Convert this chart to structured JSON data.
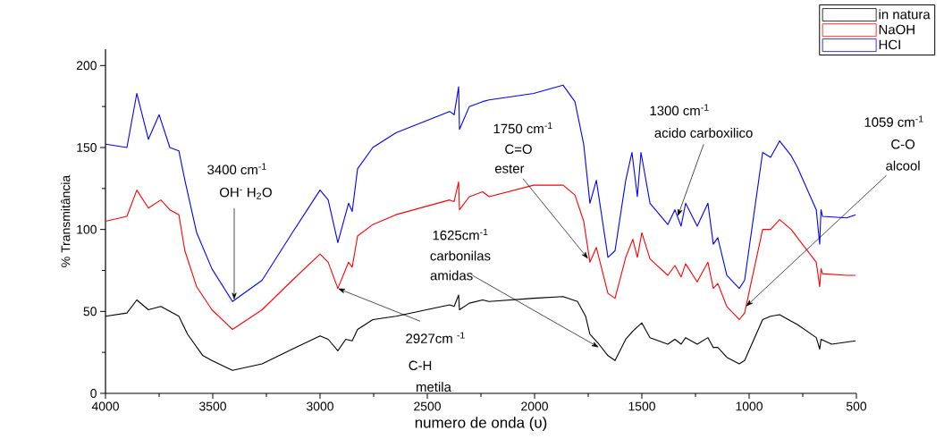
{
  "chart_data": {
    "type": "line",
    "xlabel": "numero de onda (υ)",
    "ylabel": "% Transmitância",
    "xlim": [
      4000,
      500
    ],
    "ylim": [
      0,
      210
    ],
    "xticks": [
      4000,
      3500,
      3000,
      2500,
      2000,
      1500,
      1000,
      500
    ],
    "yticks": [
      0,
      50,
      100,
      150,
      200
    ],
    "legend": "top right",
    "grid": false,
    "marker": "none",
    "line_style": "solid",
    "series": [
      {
        "name": "in natura",
        "color": "#000000",
        "x": [
          4000,
          3900,
          3854,
          3800,
          3742,
          3700,
          3658,
          3617,
          3546,
          3504,
          3408,
          3270,
          3129,
          3000,
          2962,
          2917,
          2880,
          2850,
          2825,
          2754,
          2646,
          2396,
          2375,
          2354,
          2350,
          2304,
          2242,
          2212,
          2004,
          1867,
          1800,
          1762,
          1742,
          1700,
          1658,
          1625,
          1575,
          1542,
          1500,
          1462,
          1379,
          1346,
          1317,
          1296,
          1242,
          1192,
          1167,
          1146,
          1104,
          1046,
          1021,
          937,
          900,
          858,
          804,
          775,
          687,
          671,
          665,
          615,
          504
        ],
        "values": [
          47,
          49,
          57,
          51,
          53,
          50,
          47,
          36,
          23,
          20,
          14,
          18,
          27,
          35,
          33,
          26,
          33,
          32,
          39,
          45,
          47,
          54,
          53,
          60,
          51,
          55,
          57,
          56,
          58,
          59,
          56,
          47,
          36,
          30,
          23,
          20,
          33,
          38,
          43,
          34,
          30,
          33,
          30,
          34,
          30,
          34,
          28,
          28,
          22,
          18,
          20,
          45,
          47,
          48,
          44,
          42,
          34,
          27,
          33,
          30,
          32
        ]
      },
      {
        "name": "NaOH",
        "color": "#ff0000",
        "x": [
          4000,
          3900,
          3854,
          3800,
          3742,
          3700,
          3658,
          3630,
          3575,
          3504,
          3408,
          3270,
          3129,
          3000,
          2962,
          2917,
          2867,
          2850,
          2825,
          2754,
          2646,
          2396,
          2375,
          2354,
          2350,
          2304,
          2242,
          2212,
          2004,
          1867,
          1812,
          1771,
          1742,
          1712,
          1658,
          1625,
          1575,
          1542,
          1521,
          1500,
          1462,
          1379,
          1346,
          1317,
          1296,
          1242,
          1192,
          1167,
          1146,
          1104,
          1046,
          1021,
          937,
          900,
          858,
          804,
          775,
          687,
          671,
          665,
          658,
          546,
          504
        ],
        "values": [
          105,
          108,
          124,
          113,
          118,
          112,
          109,
          87,
          65,
          51,
          39,
          51,
          69,
          85,
          80,
          64,
          80,
          77,
          96,
          103,
          109,
          118,
          117,
          129,
          112,
          120,
          123,
          120,
          127,
          127,
          121,
          105,
          80,
          89,
          61,
          58,
          83,
          94,
          83,
          98,
          82,
          72,
          78,
          71,
          79,
          68,
          80,
          64,
          67,
          53,
          45,
          49,
          100,
          100,
          106,
          100,
          95,
          80,
          65,
          76,
          73,
          72,
          72
        ]
      },
      {
        "name": "HCI",
        "color": "#0000ff",
        "x": [
          4000,
          3900,
          3854,
          3800,
          3750,
          3700,
          3658,
          3630,
          3575,
          3504,
          3408,
          3270,
          3129,
          3000,
          2962,
          2917,
          2867,
          2850,
          2825,
          2754,
          2646,
          2396,
          2375,
          2354,
          2350,
          2304,
          2242,
          2212,
          2004,
          1867,
          1812,
          1771,
          1742,
          1712,
          1658,
          1625,
          1575,
          1546,
          1521,
          1504,
          1462,
          1379,
          1346,
          1317,
          1296,
          1242,
          1192,
          1167,
          1146,
          1104,
          1046,
          1021,
          937,
          900,
          858,
          804,
          775,
          687,
          671,
          665,
          658,
          546,
          504
        ],
        "values": [
          152,
          150,
          183,
          155,
          170,
          150,
          148,
          130,
          98,
          76,
          56,
          69,
          98,
          124,
          118,
          92,
          116,
          111,
          137,
          150,
          159,
          172,
          170,
          187,
          161,
          175,
          178,
          179,
          183,
          188,
          178,
          152,
          116,
          130,
          83,
          87,
          130,
          147,
          120,
          147,
          116,
          103,
          112,
          102,
          116,
          102,
          116,
          91,
          95,
          72,
          64,
          69,
          147,
          144,
          154,
          145,
          138,
          112,
          91,
          112,
          108,
          107,
          109
        ]
      }
    ],
    "annotations": [
      "3400 cm$^{-1}$",
      {
        "text": "OH$^{-}$  H$_{2}$O",
        "x": 3400,
        "y": 57
      },
      {
        "text": "2927cm $^{-1}$",
        "x": 2917,
        "y": 64
      },
      "C-H",
      "metila",
      "1625cm$^{-1}$",
      "carbonilas",
      {
        "text": "amidas",
        "x": 1700,
        "y": 28
      },
      "1750 cm$^{-1}$",
      "C=O",
      {
        "text": "ester",
        "x": 1750,
        "y": 82
      },
      "1300 cm$^{-1}$",
      {
        "text": "acido carboxilico",
        "x": 1333,
        "y": 108
      },
      "1059 cm$^{-1}$",
      "C-O",
      {
        "text": "alcool",
        "x": 1015,
        "y": 53
      }
    ]
  }
}
